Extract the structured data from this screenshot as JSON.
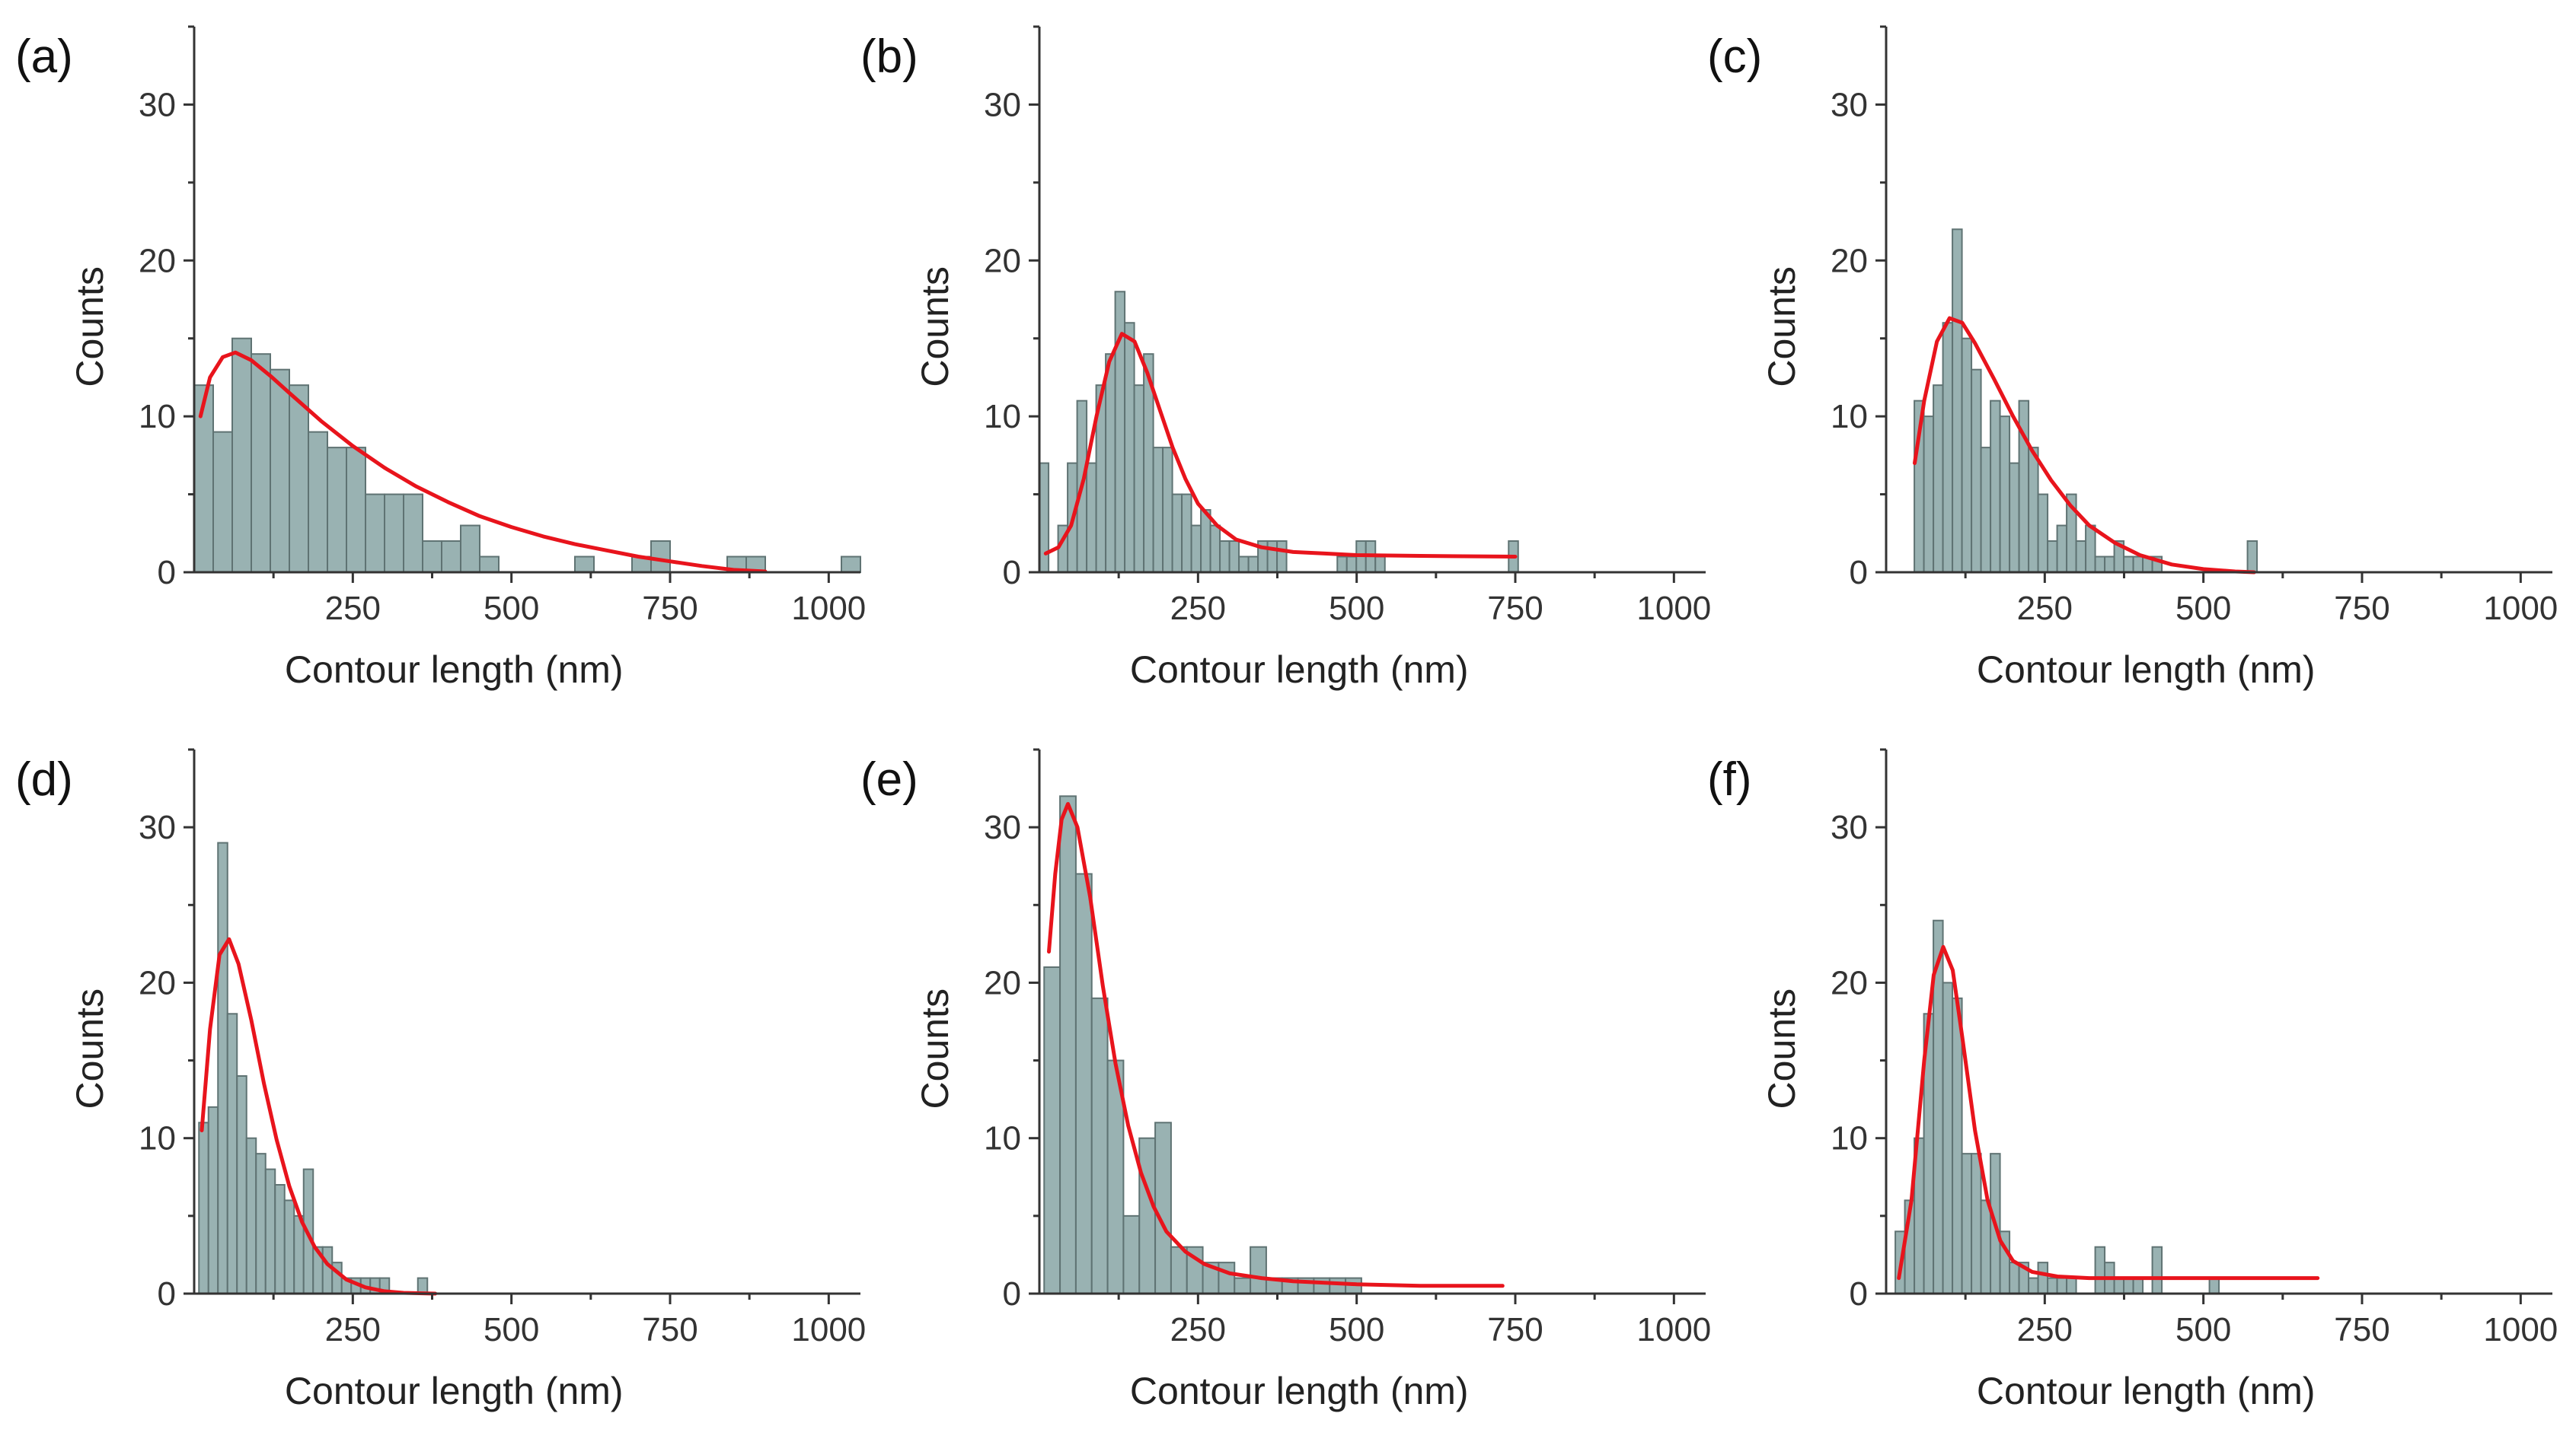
{
  "chart_data": [
    {
      "type": "bar",
      "panel_label": "(a)",
      "xlabel": "Contour length (nm)",
      "ylabel": "Counts",
      "xlim": [
        0,
        1050
      ],
      "ylim": [
        0,
        35
      ],
      "xticks": [
        250,
        500,
        750,
        1000
      ],
      "yticks": [
        0,
        10,
        20,
        30
      ],
      "bar_color": "#99B2B2",
      "fit_color": "#E8141C",
      "bin_width": 30,
      "bins": [
        {
          "x": 15,
          "count": 12
        },
        {
          "x": 45,
          "count": 9
        },
        {
          "x": 75,
          "count": 15
        },
        {
          "x": 105,
          "count": 14
        },
        {
          "x": 135,
          "count": 13
        },
        {
          "x": 165,
          "count": 12
        },
        {
          "x": 195,
          "count": 9
        },
        {
          "x": 225,
          "count": 8
        },
        {
          "x": 255,
          "count": 8
        },
        {
          "x": 285,
          "count": 5
        },
        {
          "x": 315,
          "count": 5
        },
        {
          "x": 345,
          "count": 5
        },
        {
          "x": 375,
          "count": 2
        },
        {
          "x": 405,
          "count": 2
        },
        {
          "x": 435,
          "count": 3
        },
        {
          "x": 465,
          "count": 1
        },
        {
          "x": 615,
          "count": 1
        },
        {
          "x": 705,
          "count": 1
        },
        {
          "x": 735,
          "count": 2
        },
        {
          "x": 855,
          "count": 1
        },
        {
          "x": 885,
          "count": 1
        },
        {
          "x": 1035,
          "count": 1
        }
      ],
      "fit": [
        [
          10,
          10
        ],
        [
          25,
          12.5
        ],
        [
          45,
          13.8
        ],
        [
          65,
          14.1
        ],
        [
          90,
          13.6
        ],
        [
          120,
          12.6
        ],
        [
          150,
          11.5
        ],
        [
          200,
          9.7
        ],
        [
          250,
          8.1
        ],
        [
          300,
          6.7
        ],
        [
          350,
          5.5
        ],
        [
          400,
          4.5
        ],
        [
          450,
          3.6
        ],
        [
          500,
          2.9
        ],
        [
          550,
          2.3
        ],
        [
          600,
          1.8
        ],
        [
          650,
          1.4
        ],
        [
          700,
          1.0
        ],
        [
          750,
          0.7
        ],
        [
          800,
          0.4
        ],
        [
          850,
          0.15
        ],
        [
          900,
          0.05
        ]
      ]
    },
    {
      "type": "bar",
      "panel_label": "(b)",
      "xlabel": "Contour length (nm)",
      "ylabel": "Counts",
      "xlim": [
        0,
        1050
      ],
      "ylim": [
        0,
        35
      ],
      "xticks": [
        250,
        500,
        750,
        1000
      ],
      "yticks": [
        0,
        10,
        20,
        30
      ],
      "bar_color": "#99B2B2",
      "fit_color": "#E8141C",
      "bin_width": 15,
      "bins": [
        {
          "x": 7,
          "count": 7
        },
        {
          "x": 37,
          "count": 3
        },
        {
          "x": 52,
          "count": 7
        },
        {
          "x": 67,
          "count": 11
        },
        {
          "x": 82,
          "count": 7
        },
        {
          "x": 97,
          "count": 12
        },
        {
          "x": 112,
          "count": 14
        },
        {
          "x": 127,
          "count": 18
        },
        {
          "x": 142,
          "count": 16
        },
        {
          "x": 157,
          "count": 12
        },
        {
          "x": 172,
          "count": 14
        },
        {
          "x": 187,
          "count": 8
        },
        {
          "x": 202,
          "count": 8
        },
        {
          "x": 217,
          "count": 5
        },
        {
          "x": 232,
          "count": 5
        },
        {
          "x": 247,
          "count": 3
        },
        {
          "x": 262,
          "count": 4
        },
        {
          "x": 277,
          "count": 3
        },
        {
          "x": 292,
          "count": 2
        },
        {
          "x": 307,
          "count": 2
        },
        {
          "x": 322,
          "count": 1
        },
        {
          "x": 337,
          "count": 1
        },
        {
          "x": 352,
          "count": 2
        },
        {
          "x": 367,
          "count": 2
        },
        {
          "x": 382,
          "count": 2
        },
        {
          "x": 477,
          "count": 1
        },
        {
          "x": 492,
          "count": 1
        },
        {
          "x": 507,
          "count": 2
        },
        {
          "x": 522,
          "count": 2
        },
        {
          "x": 537,
          "count": 1
        },
        {
          "x": 747,
          "count": 2
        }
      ],
      "fit": [
        [
          10,
          1.2
        ],
        [
          30,
          1.6
        ],
        [
          50,
          3.0
        ],
        [
          70,
          6.0
        ],
        [
          90,
          10.0
        ],
        [
          110,
          13.5
        ],
        [
          130,
          15.3
        ],
        [
          150,
          14.8
        ],
        [
          170,
          12.8
        ],
        [
          190,
          10.4
        ],
        [
          210,
          8.0
        ],
        [
          230,
          6.0
        ],
        [
          250,
          4.4
        ],
        [
          280,
          3.0
        ],
        [
          310,
          2.1
        ],
        [
          350,
          1.6
        ],
        [
          400,
          1.3
        ],
        [
          450,
          1.2
        ],
        [
          500,
          1.1
        ],
        [
          600,
          1.05
        ],
        [
          750,
          1.0
        ]
      ]
    },
    {
      "type": "bar",
      "panel_label": "(c)",
      "xlabel": "Contour length (nm)",
      "ylabel": "Counts",
      "xlim": [
        0,
        1050
      ],
      "ylim": [
        0,
        35
      ],
      "xticks": [
        250,
        500,
        750,
        1000
      ],
      "yticks": [
        0,
        10,
        20,
        30
      ],
      "bar_color": "#99B2B2",
      "fit_color": "#E8141C",
      "bin_width": 15,
      "bins": [
        {
          "x": 52,
          "count": 11
        },
        {
          "x": 67,
          "count": 10
        },
        {
          "x": 82,
          "count": 12
        },
        {
          "x": 97,
          "count": 16
        },
        {
          "x": 112,
          "count": 22
        },
        {
          "x": 127,
          "count": 15
        },
        {
          "x": 142,
          "count": 13
        },
        {
          "x": 157,
          "count": 8
        },
        {
          "x": 172,
          "count": 11
        },
        {
          "x": 187,
          "count": 10
        },
        {
          "x": 202,
          "count": 7
        },
        {
          "x": 217,
          "count": 11
        },
        {
          "x": 232,
          "count": 8
        },
        {
          "x": 247,
          "count": 5
        },
        {
          "x": 262,
          "count": 2
        },
        {
          "x": 277,
          "count": 3
        },
        {
          "x": 292,
          "count": 5
        },
        {
          "x": 307,
          "count": 2
        },
        {
          "x": 322,
          "count": 3
        },
        {
          "x": 337,
          "count": 1
        },
        {
          "x": 352,
          "count": 1
        },
        {
          "x": 367,
          "count": 2
        },
        {
          "x": 382,
          "count": 1
        },
        {
          "x": 397,
          "count": 1
        },
        {
          "x": 412,
          "count": 1
        },
        {
          "x": 427,
          "count": 1
        },
        {
          "x": 577,
          "count": 2
        }
      ],
      "fit": [
        [
          45,
          7
        ],
        [
          60,
          11
        ],
        [
          80,
          14.8
        ],
        [
          100,
          16.3
        ],
        [
          120,
          16.0
        ],
        [
          140,
          14.7
        ],
        [
          170,
          12.4
        ],
        [
          200,
          10.0
        ],
        [
          230,
          7.8
        ],
        [
          260,
          5.9
        ],
        [
          290,
          4.3
        ],
        [
          320,
          3.0
        ],
        [
          360,
          1.9
        ],
        [
          400,
          1.1
        ],
        [
          450,
          0.5
        ],
        [
          500,
          0.2
        ],
        [
          550,
          0.05
        ],
        [
          580,
          0
        ]
      ]
    },
    {
      "type": "bar",
      "panel_label": "(d)",
      "xlabel": "Contour length (nm)",
      "ylabel": "Counts",
      "xlim": [
        0,
        1050
      ],
      "ylim": [
        0,
        35
      ],
      "xticks": [
        250,
        500,
        750,
        1000
      ],
      "yticks": [
        0,
        10,
        20,
        30
      ],
      "bar_color": "#99B2B2",
      "fit_color": "#E8141C",
      "bin_width": 15,
      "bins": [
        {
          "x": 15,
          "count": 11
        },
        {
          "x": 30,
          "count": 12
        },
        {
          "x": 45,
          "count": 29
        },
        {
          "x": 60,
          "count": 18
        },
        {
          "x": 75,
          "count": 14
        },
        {
          "x": 90,
          "count": 10
        },
        {
          "x": 105,
          "count": 9
        },
        {
          "x": 120,
          "count": 8
        },
        {
          "x": 135,
          "count": 7
        },
        {
          "x": 150,
          "count": 6
        },
        {
          "x": 165,
          "count": 5
        },
        {
          "x": 180,
          "count": 8
        },
        {
          "x": 195,
          "count": 3
        },
        {
          "x": 210,
          "count": 3
        },
        {
          "x": 225,
          "count": 2
        },
        {
          "x": 240,
          "count": 1
        },
        {
          "x": 255,
          "count": 1
        },
        {
          "x": 270,
          "count": 1
        },
        {
          "x": 285,
          "count": 1
        },
        {
          "x": 300,
          "count": 1
        },
        {
          "x": 360,
          "count": 1
        }
      ],
      "fit": [
        [
          12,
          10.5
        ],
        [
          25,
          17
        ],
        [
          40,
          21.8
        ],
        [
          55,
          22.8
        ],
        [
          70,
          21.2
        ],
        [
          90,
          17.6
        ],
        [
          110,
          13.5
        ],
        [
          130,
          9.9
        ],
        [
          150,
          6.9
        ],
        [
          170,
          4.6
        ],
        [
          190,
          3.0
        ],
        [
          210,
          1.9
        ],
        [
          240,
          0.9
        ],
        [
          270,
          0.4
        ],
        [
          300,
          0.15
        ],
        [
          330,
          0.05
        ],
        [
          380,
          0
        ]
      ]
    },
    {
      "type": "bar",
      "panel_label": "(e)",
      "xlabel": "Contour length (nm)",
      "ylabel": "Counts",
      "xlim": [
        0,
        1050
      ],
      "ylim": [
        0,
        35
      ],
      "xticks": [
        250,
        500,
        750,
        1000
      ],
      "yticks": [
        0,
        10,
        20,
        30
      ],
      "bar_color": "#99B2B2",
      "fit_color": "#E8141C",
      "bin_width": 25,
      "bins": [
        {
          "x": 20,
          "count": 21
        },
        {
          "x": 45,
          "count": 32
        },
        {
          "x": 70,
          "count": 27
        },
        {
          "x": 95,
          "count": 19
        },
        {
          "x": 120,
          "count": 15
        },
        {
          "x": 145,
          "count": 5
        },
        {
          "x": 170,
          "count": 10
        },
        {
          "x": 195,
          "count": 11
        },
        {
          "x": 220,
          "count": 3
        },
        {
          "x": 245,
          "count": 3
        },
        {
          "x": 270,
          "count": 2
        },
        {
          "x": 295,
          "count": 2
        },
        {
          "x": 320,
          "count": 1
        },
        {
          "x": 345,
          "count": 3
        },
        {
          "x": 370,
          "count": 1
        },
        {
          "x": 395,
          "count": 1
        },
        {
          "x": 420,
          "count": 1
        },
        {
          "x": 445,
          "count": 1
        },
        {
          "x": 470,
          "count": 1
        },
        {
          "x": 495,
          "count": 1
        }
      ],
      "fit": [
        [
          15,
          22
        ],
        [
          25,
          27
        ],
        [
          35,
          30.5
        ],
        [
          45,
          31.5
        ],
        [
          60,
          30
        ],
        [
          80,
          25.5
        ],
        [
          100,
          19.8
        ],
        [
          120,
          14.8
        ],
        [
          140,
          10.8
        ],
        [
          160,
          7.8
        ],
        [
          180,
          5.6
        ],
        [
          200,
          4.0
        ],
        [
          230,
          2.7
        ],
        [
          260,
          1.9
        ],
        [
          300,
          1.3
        ],
        [
          350,
          1.0
        ],
        [
          400,
          0.8
        ],
        [
          500,
          0.6
        ],
        [
          600,
          0.5
        ],
        [
          730,
          0.5
        ]
      ]
    },
    {
      "type": "bar",
      "panel_label": "(f)",
      "xlabel": "Contour length (nm)",
      "ylabel": "Counts",
      "xlim": [
        0,
        1050
      ],
      "ylim": [
        0,
        35
      ],
      "xticks": [
        250,
        500,
        750,
        1000
      ],
      "yticks": [
        0,
        10,
        20,
        30
      ],
      "bar_color": "#99B2B2",
      "fit_color": "#E8141C",
      "bin_width": 15,
      "bins": [
        {
          "x": 22,
          "count": 4
        },
        {
          "x": 37,
          "count": 6
        },
        {
          "x": 52,
          "count": 10
        },
        {
          "x": 67,
          "count": 18
        },
        {
          "x": 82,
          "count": 24
        },
        {
          "x": 97,
          "count": 20
        },
        {
          "x": 112,
          "count": 19
        },
        {
          "x": 127,
          "count": 9
        },
        {
          "x": 142,
          "count": 9
        },
        {
          "x": 157,
          "count": 6
        },
        {
          "x": 172,
          "count": 9
        },
        {
          "x": 187,
          "count": 4
        },
        {
          "x": 202,
          "count": 2
        },
        {
          "x": 217,
          "count": 2
        },
        {
          "x": 232,
          "count": 1
        },
        {
          "x": 247,
          "count": 2
        },
        {
          "x": 262,
          "count": 1
        },
        {
          "x": 277,
          "count": 1
        },
        {
          "x": 292,
          "count": 1
        },
        {
          "x": 337,
          "count": 3
        },
        {
          "x": 352,
          "count": 2
        },
        {
          "x": 367,
          "count": 1
        },
        {
          "x": 382,
          "count": 1
        },
        {
          "x": 397,
          "count": 1
        },
        {
          "x": 427,
          "count": 3
        },
        {
          "x": 517,
          "count": 1
        }
      ],
      "fit": [
        [
          20,
          1.0
        ],
        [
          40,
          6.0
        ],
        [
          60,
          15
        ],
        [
          75,
          20.5
        ],
        [
          90,
          22.3
        ],
        [
          105,
          20.8
        ],
        [
          120,
          16.5
        ],
        [
          140,
          10.5
        ],
        [
          160,
          6.0
        ],
        [
          180,
          3.4
        ],
        [
          200,
          2.1
        ],
        [
          230,
          1.4
        ],
        [
          270,
          1.1
        ],
        [
          320,
          1.0
        ],
        [
          400,
          1.0
        ],
        [
          500,
          1.0
        ],
        [
          600,
          1.0
        ],
        [
          680,
          1.0
        ]
      ]
    }
  ]
}
